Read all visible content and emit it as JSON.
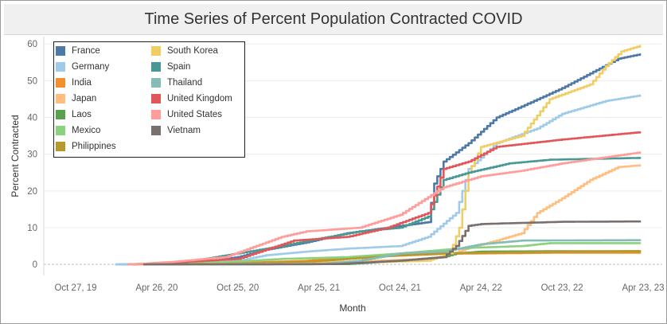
{
  "chart_data": {
    "type": "line",
    "title": "Time Series of Percent Population Contracted COVID",
    "xlabel": "Month",
    "ylabel": "Percent Contracted",
    "ylim": [
      -3,
      62
    ],
    "x_range": [
      "2019-10-27",
      "2023-04-23"
    ],
    "x_ticks": [
      "Oct 27, 19",
      "Apr 26, 20",
      "Oct 25, 20",
      "Apr 25, 21",
      "Oct 24, 21",
      "Apr 24, 22",
      "Oct 23, 22",
      "Apr 23, 23"
    ],
    "x_tick_dates": [
      "2019-10-27",
      "2020-04-26",
      "2020-10-25",
      "2021-04-25",
      "2021-10-24",
      "2022-04-24",
      "2022-10-23",
      "2023-04-23"
    ],
    "y_ticks": [
      0,
      10,
      20,
      30,
      40,
      50,
      60
    ],
    "grid": "horizontal",
    "legend_position": "top-left",
    "series": [
      {
        "name": "France",
        "color": "#4e79a7",
        "points": [
          [
            "2020-01-26",
            0
          ],
          [
            "2020-03-29",
            0.1
          ],
          [
            "2020-07-26",
            0.3
          ],
          [
            "2020-10-25",
            2
          ],
          [
            "2020-12-27",
            4
          ],
          [
            "2021-03-28",
            6
          ],
          [
            "2021-06-27",
            8.5
          ],
          [
            "2021-09-26",
            10
          ],
          [
            "2021-12-26",
            11.5
          ],
          [
            "2022-01-09",
            22
          ],
          [
            "2022-01-30",
            28
          ],
          [
            "2022-03-27",
            33
          ],
          [
            "2022-05-29",
            40
          ],
          [
            "2022-07-24",
            43
          ],
          [
            "2022-10-23",
            48
          ],
          [
            "2022-12-25",
            52
          ],
          [
            "2023-02-26",
            56
          ],
          [
            "2023-04-16",
            57.2
          ]
        ]
      },
      {
        "name": "Germany",
        "color": "#a0cbe8",
        "points": [
          [
            "2020-01-26",
            0
          ],
          [
            "2020-04-26",
            0.2
          ],
          [
            "2020-10-25",
            1
          ],
          [
            "2020-12-27",
            2.5
          ],
          [
            "2021-03-28",
            3.5
          ],
          [
            "2021-06-27",
            4.3
          ],
          [
            "2021-10-24",
            5
          ],
          [
            "2021-12-26",
            7.5
          ],
          [
            "2022-02-27",
            14
          ],
          [
            "2022-03-27",
            26
          ],
          [
            "2022-05-29",
            33
          ],
          [
            "2022-08-28",
            37
          ],
          [
            "2022-10-23",
            41
          ],
          [
            "2023-01-29",
            44.5
          ],
          [
            "2023-04-16",
            46
          ]
        ]
      },
      {
        "name": "India",
        "color": "#f28e2b",
        "points": [
          [
            "2020-03-29",
            0
          ],
          [
            "2020-09-27",
            0.3
          ],
          [
            "2021-03-28",
            1
          ],
          [
            "2021-05-30",
            1.7
          ],
          [
            "2021-10-24",
            2.4
          ],
          [
            "2022-01-30",
            2.9
          ],
          [
            "2022-04-24",
            3
          ],
          [
            "2022-10-23",
            3.2
          ],
          [
            "2023-04-16",
            3.2
          ]
        ]
      },
      {
        "name": "Japan",
        "color": "#ffbe7d",
        "points": [
          [
            "2020-02-23",
            0
          ],
          [
            "2020-11-29",
            0.1
          ],
          [
            "2021-03-28",
            0.4
          ],
          [
            "2021-08-29",
            1
          ],
          [
            "2021-11-28",
            1.4
          ],
          [
            "2022-01-30",
            2
          ],
          [
            "2022-03-27",
            4.5
          ],
          [
            "2022-05-29",
            6.5
          ],
          [
            "2022-07-24",
            8.5
          ],
          [
            "2022-08-28",
            14
          ],
          [
            "2022-10-23",
            18
          ],
          [
            "2022-12-25",
            23
          ],
          [
            "2023-02-26",
            26.5
          ],
          [
            "2023-04-16",
            27
          ]
        ]
      },
      {
        "name": "Laos",
        "color": "#59a14f",
        "points": [
          [
            "2020-03-29",
            0
          ],
          [
            "2021-06-27",
            0.1
          ],
          [
            "2021-10-24",
            1
          ],
          [
            "2022-01-30",
            2
          ],
          [
            "2022-02-27",
            3
          ],
          [
            "2022-04-24",
            3.5
          ],
          [
            "2022-10-23",
            3.6
          ],
          [
            "2023-04-16",
            3.6
          ]
        ]
      },
      {
        "name": "Mexico",
        "color": "#8cd17d",
        "points": [
          [
            "2020-03-29",
            0
          ],
          [
            "2020-09-27",
            0.6
          ],
          [
            "2021-01-31",
            1.5
          ],
          [
            "2021-06-27",
            2
          ],
          [
            "2021-10-24",
            3
          ],
          [
            "2022-01-30",
            4
          ],
          [
            "2022-03-27",
            4.5
          ],
          [
            "2022-07-24",
            5
          ],
          [
            "2022-09-25",
            5.8
          ],
          [
            "2023-04-16",
            5.8
          ]
        ]
      },
      {
        "name": "Philippines",
        "color": "#b6992d",
        "points": [
          [
            "2020-03-29",
            0
          ],
          [
            "2020-09-27",
            0.2
          ],
          [
            "2021-03-28",
            0.7
          ],
          [
            "2021-10-24",
            2.5
          ],
          [
            "2022-01-30",
            3
          ],
          [
            "2022-10-23",
            3.5
          ],
          [
            "2023-04-16",
            3.6
          ]
        ]
      },
      {
        "name": "South Korea",
        "color": "#f1ce63",
        "points": [
          [
            "2020-02-23",
            0
          ],
          [
            "2021-03-28",
            0.2
          ],
          [
            "2021-12-26",
            1
          ],
          [
            "2022-02-13",
            3
          ],
          [
            "2022-03-06",
            10
          ],
          [
            "2022-03-27",
            25
          ],
          [
            "2022-04-24",
            32
          ],
          [
            "2022-07-24",
            35
          ],
          [
            "2022-09-25",
            45
          ],
          [
            "2022-12-25",
            49
          ],
          [
            "2023-01-29",
            54
          ],
          [
            "2023-03-05",
            58
          ],
          [
            "2023-04-16",
            59.5
          ]
        ]
      },
      {
        "name": "Spain",
        "color": "#499894",
        "points": [
          [
            "2020-02-23",
            0
          ],
          [
            "2020-06-28",
            0.6
          ],
          [
            "2020-10-25",
            3
          ],
          [
            "2021-01-31",
            5
          ],
          [
            "2021-04-25",
            7
          ],
          [
            "2021-07-25",
            9
          ],
          [
            "2021-10-24",
            10
          ],
          [
            "2021-12-26",
            13
          ],
          [
            "2022-01-30",
            23
          ],
          [
            "2022-03-27",
            25
          ],
          [
            "2022-06-26",
            27.5
          ],
          [
            "2022-09-25",
            28.5
          ],
          [
            "2023-04-16",
            29
          ]
        ]
      },
      {
        "name": "Thailand",
        "color": "#86bcb6",
        "points": [
          [
            "2020-03-29",
            0
          ],
          [
            "2021-04-25",
            0.1
          ],
          [
            "2021-07-25",
            1
          ],
          [
            "2021-10-24",
            3
          ],
          [
            "2022-01-30",
            3.5
          ],
          [
            "2022-04-24",
            5.5
          ],
          [
            "2022-07-24",
            6.5
          ],
          [
            "2023-04-16",
            6.6
          ]
        ]
      },
      {
        "name": "United Kingdom",
        "color": "#e15759",
        "points": [
          [
            "2020-02-23",
            0
          ],
          [
            "2020-05-31",
            0.5
          ],
          [
            "2020-10-25",
            1.5
          ],
          [
            "2020-12-27",
            4
          ],
          [
            "2021-02-28",
            6.5
          ],
          [
            "2021-06-27",
            7.5
          ],
          [
            "2021-09-26",
            10
          ],
          [
            "2021-12-26",
            14
          ],
          [
            "2022-01-30",
            26
          ],
          [
            "2022-03-27",
            28
          ],
          [
            "2022-05-29",
            32
          ],
          [
            "2022-10-23",
            34
          ],
          [
            "2023-04-16",
            36
          ]
        ]
      },
      {
        "name": "United States",
        "color": "#ff9d9a",
        "points": [
          [
            "2020-02-23",
            0
          ],
          [
            "2020-05-31",
            0.7
          ],
          [
            "2020-09-27",
            2
          ],
          [
            "2021-01-31",
            7.5
          ],
          [
            "2021-03-28",
            9
          ],
          [
            "2021-07-25",
            10
          ],
          [
            "2021-10-24",
            13.5
          ],
          [
            "2022-01-30",
            21
          ],
          [
            "2022-04-24",
            24
          ],
          [
            "2022-07-24",
            25.5
          ],
          [
            "2022-10-23",
            27.5
          ],
          [
            "2023-04-16",
            30.5
          ]
        ]
      },
      {
        "name": "Vietnam",
        "color": "#79706e",
        "points": [
          [
            "2020-03-29",
            0
          ],
          [
            "2021-05-30",
            0.1
          ],
          [
            "2021-10-24",
            1
          ],
          [
            "2022-01-30",
            2
          ],
          [
            "2022-02-27",
            5
          ],
          [
            "2022-03-27",
            10.5
          ],
          [
            "2022-04-24",
            11
          ],
          [
            "2022-10-23",
            11.6
          ],
          [
            "2023-04-16",
            11.7
          ]
        ]
      }
    ]
  }
}
